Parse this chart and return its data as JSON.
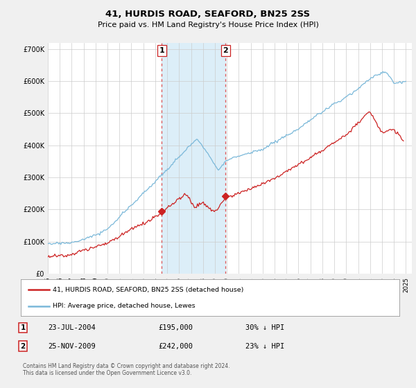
{
  "title": "41, HURDIS ROAD, SEAFORD, BN25 2SS",
  "subtitle": "Price paid vs. HM Land Registry's House Price Index (HPI)",
  "ylabel_ticks": [
    "£0",
    "£100K",
    "£200K",
    "£300K",
    "£400K",
    "£500K",
    "£600K",
    "£700K"
  ],
  "ylim": [
    0,
    720000
  ],
  "xlim_start": 1995.0,
  "xlim_end": 2025.5,
  "hpi_color": "#7ab8d9",
  "price_color": "#cc2222",
  "marker1_date": 2004.55,
  "marker1_price": 195000,
  "marker2_date": 2009.9,
  "marker2_price": 242000,
  "shade_x1_start": 2004.55,
  "shade_x1_end": 2009.9,
  "legend_label_red": "41, HURDIS ROAD, SEAFORD, BN25 2SS (detached house)",
  "legend_label_blue": "HPI: Average price, detached house, Lewes",
  "table_row1": [
    "1",
    "23-JUL-2004",
    "£195,000",
    "30% ↓ HPI"
  ],
  "table_row2": [
    "2",
    "25-NOV-2009",
    "£242,000",
    "23% ↓ HPI"
  ],
  "footnote": "Contains HM Land Registry data © Crown copyright and database right 2024.\nThis data is licensed under the Open Government Licence v3.0.",
  "background_color": "#f0f0f0",
  "plot_bg_color": "#ffffff"
}
